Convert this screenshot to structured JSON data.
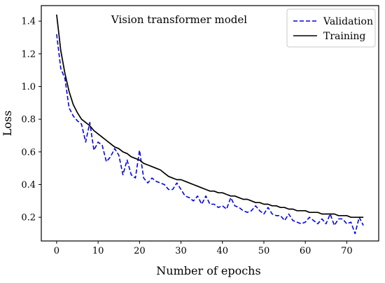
{
  "chart_data": {
    "type": "line",
    "title": "",
    "annotation": "Vision transformer model",
    "xlabel": "Number of epochs",
    "ylabel": "Loss",
    "xlim": [
      -3.7,
      77.7
    ],
    "ylim": [
      0.055,
      1.495
    ],
    "xticks": [
      0,
      10,
      20,
      30,
      40,
      50,
      60,
      70
    ],
    "yticks": [
      0.2,
      0.4,
      0.6,
      0.8,
      1.0,
      1.2,
      1.4
    ],
    "ytick_labels": [
      "0.2",
      "0.4",
      "0.6",
      "0.8",
      "1.0",
      "1.2",
      "1.4"
    ],
    "grid": false,
    "legend_position": "top-right",
    "x": [
      0,
      1,
      2,
      3,
      4,
      5,
      6,
      7,
      8,
      9,
      10,
      11,
      12,
      13,
      14,
      15,
      16,
      17,
      18,
      19,
      20,
      21,
      22,
      23,
      24,
      25,
      26,
      27,
      28,
      29,
      30,
      31,
      32,
      33,
      34,
      35,
      36,
      37,
      38,
      39,
      40,
      41,
      42,
      43,
      44,
      45,
      46,
      47,
      48,
      49,
      50,
      51,
      52,
      53,
      54,
      55,
      56,
      57,
      58,
      59,
      60,
      61,
      62,
      63,
      64,
      65,
      66,
      67,
      68,
      69,
      70,
      71,
      72,
      73,
      74
    ],
    "series": [
      {
        "name": "Validation",
        "color": "#0000ee",
        "dash": "dashed",
        "values": [
          1.32,
          1.11,
          1.05,
          0.87,
          0.82,
          0.79,
          0.77,
          0.66,
          0.78,
          0.61,
          0.66,
          0.64,
          0.54,
          0.57,
          0.62,
          0.58,
          0.46,
          0.55,
          0.46,
          0.44,
          0.61,
          0.44,
          0.41,
          0.44,
          0.42,
          0.41,
          0.4,
          0.37,
          0.37,
          0.41,
          0.37,
          0.33,
          0.32,
          0.3,
          0.33,
          0.28,
          0.33,
          0.28,
          0.28,
          0.26,
          0.27,
          0.25,
          0.32,
          0.27,
          0.26,
          0.24,
          0.23,
          0.24,
          0.27,
          0.24,
          0.22,
          0.26,
          0.22,
          0.21,
          0.21,
          0.18,
          0.22,
          0.18,
          0.17,
          0.16,
          0.17,
          0.2,
          0.18,
          0.16,
          0.19,
          0.16,
          0.22,
          0.15,
          0.19,
          0.19,
          0.16,
          0.17,
          0.1,
          0.2,
          0.15
        ]
      },
      {
        "name": "Training",
        "color": "#000000",
        "dash": "solid",
        "values": [
          1.44,
          1.22,
          1.08,
          0.97,
          0.89,
          0.84,
          0.8,
          0.78,
          0.76,
          0.73,
          0.71,
          0.69,
          0.67,
          0.65,
          0.63,
          0.62,
          0.6,
          0.59,
          0.57,
          0.56,
          0.55,
          0.53,
          0.52,
          0.51,
          0.5,
          0.49,
          0.47,
          0.45,
          0.44,
          0.43,
          0.43,
          0.42,
          0.41,
          0.4,
          0.39,
          0.38,
          0.37,
          0.36,
          0.36,
          0.35,
          0.35,
          0.34,
          0.33,
          0.33,
          0.32,
          0.31,
          0.31,
          0.3,
          0.29,
          0.29,
          0.28,
          0.28,
          0.27,
          0.27,
          0.26,
          0.26,
          0.25,
          0.25,
          0.24,
          0.24,
          0.24,
          0.23,
          0.23,
          0.23,
          0.22,
          0.22,
          0.22,
          0.22,
          0.21,
          0.21,
          0.21,
          0.2,
          0.2,
          0.2,
          0.2
        ]
      }
    ]
  }
}
